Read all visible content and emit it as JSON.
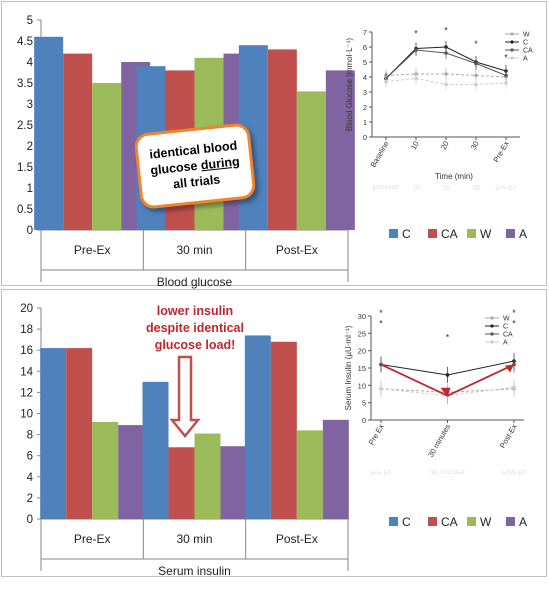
{
  "chart_data": [
    {
      "type": "bar",
      "title": "",
      "xlabel": "Blood glucose",
      "ylabel": "",
      "ylim": [
        0,
        5
      ],
      "yticks": [
        "0",
        "0.5",
        "1",
        "1.5",
        "2",
        "2.5",
        "3",
        "3.5",
        "4",
        "4.5",
        "5"
      ],
      "categories": [
        "Pre-Ex",
        "30 min",
        "Post-Ex"
      ],
      "series": [
        {
          "name": "C",
          "color": "#4f81bd",
          "values": [
            4.6,
            3.9,
            4.4
          ]
        },
        {
          "name": "CA",
          "color": "#c0504d",
          "values": [
            4.2,
            3.8,
            4.3
          ]
        },
        {
          "name": "W",
          "color": "#9bbb59",
          "values": [
            3.5,
            4.1,
            3.3
          ]
        },
        {
          "name": "A",
          "color": "#8064a2",
          "values": [
            4.0,
            4.2,
            3.8
          ]
        }
      ],
      "legend": "bottom",
      "grid": false
    },
    {
      "type": "line",
      "title": "",
      "xlabel": "Time (min)",
      "ylabel": "Blood  Glucose  (mmol·L⁻¹)",
      "ylim": [
        0,
        7
      ],
      "yticks": [
        "0",
        "1",
        "2",
        "3",
        "4",
        "5",
        "6",
        "7"
      ],
      "x": [
        "Baseline",
        "10",
        "20",
        "30",
        "Pre-Ex"
      ],
      "series": [
        {
          "name": "W",
          "color": "#aaaaaa",
          "values": [
            4.1,
            4.2,
            4.2,
            4.1,
            4.0
          ]
        },
        {
          "name": "C",
          "color": "#222222",
          "values": [
            3.9,
            5.9,
            6.0,
            5.0,
            4.4
          ]
        },
        {
          "name": "CA",
          "color": "#555555",
          "values": [
            3.9,
            5.8,
            5.6,
            4.9,
            4.1
          ]
        },
        {
          "name": "A",
          "color": "#cccccc",
          "values": [
            3.7,
            3.9,
            3.5,
            3.5,
            3.6
          ]
        }
      ],
      "annotations": [
        "*",
        "*",
        "*",
        "*"
      ],
      "legend": "top-right"
    },
    {
      "type": "bar",
      "title": "",
      "xlabel": "Serum insulin",
      "ylabel": "",
      "ylim": [
        0,
        20
      ],
      "yticks": [
        "0",
        "2",
        "4",
        "6",
        "8",
        "10",
        "12",
        "14",
        "16",
        "18",
        "20"
      ],
      "categories": [
        "Pre-Ex",
        "30 min",
        "Post-Ex"
      ],
      "series": [
        {
          "name": "C",
          "color": "#4f81bd",
          "values": [
            16.2,
            13.0,
            17.4
          ]
        },
        {
          "name": "CA",
          "color": "#c0504d",
          "values": [
            16.2,
            6.8,
            16.8
          ]
        },
        {
          "name": "W",
          "color": "#9bbb59",
          "values": [
            9.2,
            8.1,
            8.4
          ]
        },
        {
          "name": "A",
          "color": "#8064a2",
          "values": [
            8.9,
            6.9,
            9.4
          ]
        }
      ],
      "legend": "bottom",
      "grid": false
    },
    {
      "type": "line",
      "title": "",
      "xlabel": "",
      "ylabel": "Serum Insulin  (µU·ml⁻¹)",
      "ylim": [
        0,
        30
      ],
      "yticks": [
        "0",
        "5",
        "10",
        "15",
        "20",
        "25",
        "30"
      ],
      "x": [
        "Pre Ex",
        "30 minutes",
        "Post-Ex"
      ],
      "series": [
        {
          "name": "W",
          "color": "#aaaaaa",
          "values": [
            9.0,
            8.0,
            9.0
          ]
        },
        {
          "name": "C",
          "color": "#222222",
          "values": [
            16.0,
            13.0,
            17.0
          ]
        },
        {
          "name": "CA",
          "color": "#555555",
          "values": [
            16.0,
            7.0,
            16.0
          ]
        },
        {
          "name": "A",
          "color": "#cccccc",
          "values": [
            9.0,
            7.0,
            9.5
          ]
        }
      ],
      "annotations": [
        "*",
        "*",
        "*",
        "*",
        "*",
        "*"
      ],
      "legend": "top-right"
    }
  ],
  "callouts": {
    "glucose_line1": "identical blood",
    "glucose_line2_pre": "glucose ",
    "glucose_line2_underlined": "during",
    "glucose_line3": "all trials",
    "insulin_line1": "lower insulin",
    "insulin_line2": "despite identical",
    "insulin_line3": "glucose load!"
  },
  "colors": {
    "highlight_red": "#c0262b",
    "callout_border": "#f0852d"
  }
}
